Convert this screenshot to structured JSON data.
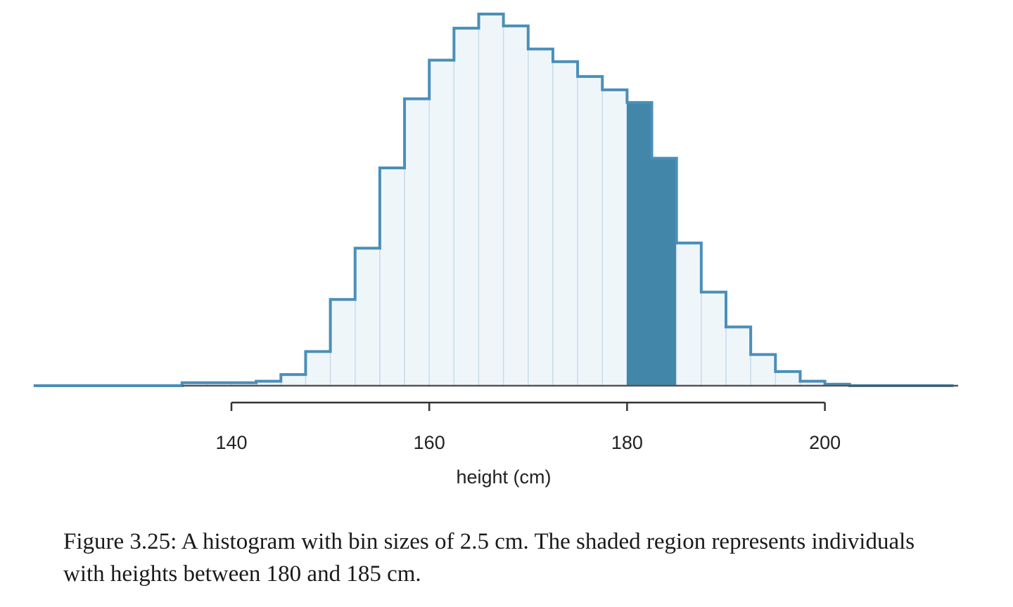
{
  "chart_data": {
    "type": "bar",
    "xlabel": "height (cm)",
    "ylabel": "",
    "xlim": [
      120,
      213
    ],
    "x_ticks": [
      140,
      160,
      180,
      200
    ],
    "bin_width": 2.5,
    "shaded_range": [
      180,
      185
    ],
    "bins": [
      {
        "start": 135.0,
        "value": 0.4
      },
      {
        "start": 137.5,
        "value": 0.4
      },
      {
        "start": 140.0,
        "value": 0.4
      },
      {
        "start": 142.5,
        "value": 0.6
      },
      {
        "start": 145.0,
        "value": 1.5
      },
      {
        "start": 147.5,
        "value": 4.6
      },
      {
        "start": 150.0,
        "value": 11.6
      },
      {
        "start": 152.5,
        "value": 18.5
      },
      {
        "start": 155.0,
        "value": 29.3
      },
      {
        "start": 157.5,
        "value": 38.6
      },
      {
        "start": 160.0,
        "value": 43.8
      },
      {
        "start": 162.5,
        "value": 48.1
      },
      {
        "start": 165.0,
        "value": 50.0
      },
      {
        "start": 167.5,
        "value": 48.4
      },
      {
        "start": 170.0,
        "value": 45.3
      },
      {
        "start": 172.5,
        "value": 43.6
      },
      {
        "start": 175.0,
        "value": 41.6
      },
      {
        "start": 177.5,
        "value": 39.8
      },
      {
        "start": 180.0,
        "value": 38.1
      },
      {
        "start": 182.5,
        "value": 30.6
      },
      {
        "start": 185.0,
        "value": 19.2
      },
      {
        "start": 187.5,
        "value": 12.6
      },
      {
        "start": 190.0,
        "value": 7.9
      },
      {
        "start": 192.5,
        "value": 4.2
      },
      {
        "start": 195.0,
        "value": 1.9
      },
      {
        "start": 197.5,
        "value": 0.6
      },
      {
        "start": 200.0,
        "value": 0.2
      }
    ],
    "colors": {
      "outline": "#4a8fb9",
      "fill": "#eff6fa",
      "inner_lines": "#c9dde9",
      "shaded": "#4286aa",
      "baseline": "#555555",
      "axis": "#333333"
    }
  },
  "caption": "Figure 3.25: A histogram with bin sizes of 2.5 cm. The shaded region represents individuals with heights between 180 and 185 cm."
}
